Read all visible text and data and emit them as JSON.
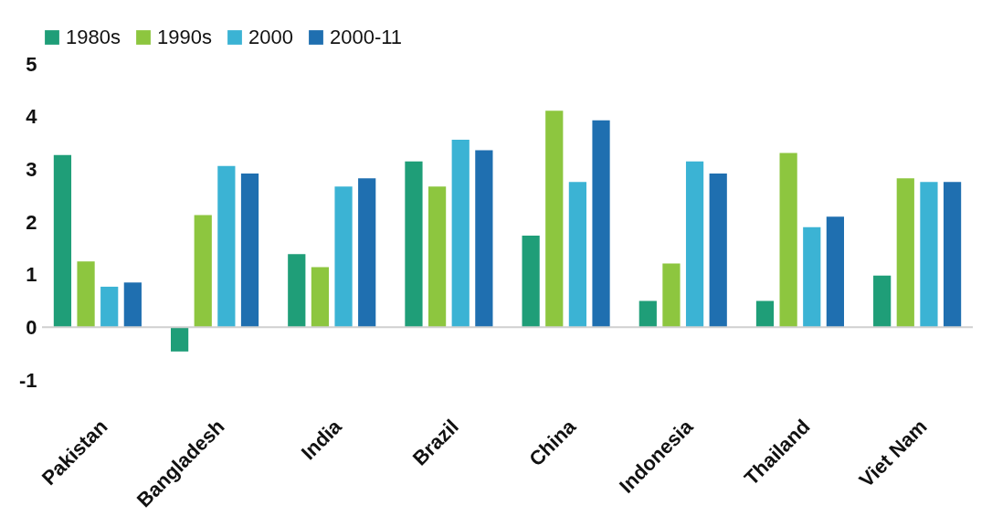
{
  "chart_data": {
    "type": "bar",
    "categories": [
      "Pakistan",
      "Bangladesh",
      "India",
      "Brazil",
      "China",
      "Indonesia",
      "Thailand",
      "Viet Nam"
    ],
    "series": [
      {
        "name": "1980s",
        "color": "#1f9e78",
        "values": [
          3.27,
          -0.46,
          1.39,
          3.15,
          1.74,
          0.5,
          0.5,
          0.98
        ]
      },
      {
        "name": "1990s",
        "color": "#8dc63f",
        "values": [
          1.25,
          2.13,
          1.14,
          2.67,
          4.11,
          1.21,
          3.31,
          2.83
        ]
      },
      {
        "name": "2000",
        "color": "#3bb3d4",
        "values": [
          0.77,
          3.06,
          2.67,
          3.56,
          2.76,
          3.15,
          1.9,
          2.76
        ]
      },
      {
        "name": "2000-11",
        "color": "#1f6fb0",
        "values": [
          0.85,
          2.92,
          2.83,
          3.36,
          3.93,
          2.92,
          2.1,
          2.76
        ]
      }
    ],
    "ylim": [
      -1,
      5
    ],
    "yticks": [
      {
        "value": -1,
        "label": "-1"
      },
      0,
      1,
      2,
      3,
      4,
      5
    ],
    "ref_lines": [
      {
        "axis": "y",
        "value": 0,
        "color": "#d0d0d0"
      }
    ],
    "legend": "top"
  }
}
